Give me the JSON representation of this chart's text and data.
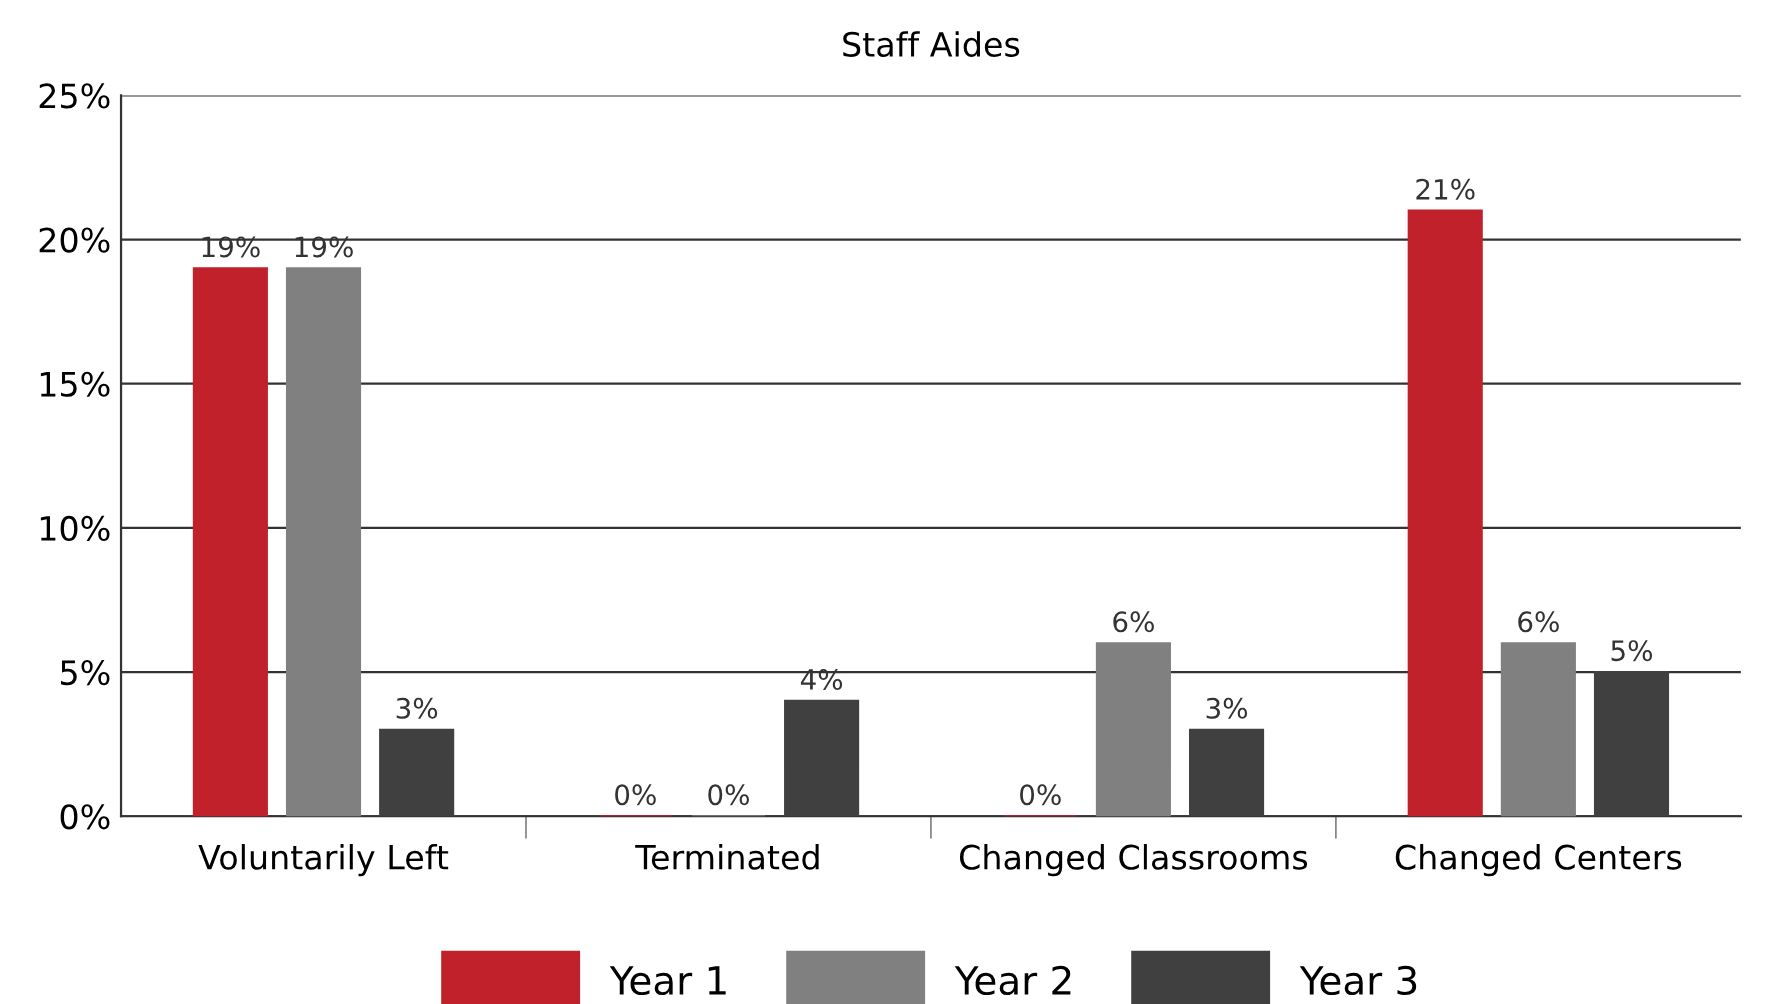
{
  "chart_data": {
    "type": "bar",
    "title": "Staff Aides",
    "categories": [
      "Voluntarily Left",
      "Terminated",
      "Changed Classrooms",
      "Changed Centers"
    ],
    "series": [
      {
        "name": "Year 1",
        "color": "#c0212b",
        "values": [
          19,
          0,
          0,
          21
        ],
        "value_labels": [
          "19%",
          "0%",
          "0%",
          "21%"
        ]
      },
      {
        "name": "Year 2",
        "color": "#808080",
        "values": [
          19,
          0,
          6,
          6
        ],
        "value_labels": [
          "19%",
          "0%",
          "6%",
          "6%"
        ]
      },
      {
        "name": "Year 3",
        "color": "#404040",
        "values": [
          3,
          4,
          3,
          5
        ],
        "value_labels": [
          "3%",
          "4%",
          "3%",
          "5%"
        ]
      }
    ],
    "ylim": [
      0,
      25
    ],
    "yticks": [
      {
        "value": 0,
        "label": "0%"
      },
      {
        "value": 5,
        "label": "5%"
      },
      {
        "value": 10,
        "label": "10%"
      },
      {
        "value": 15,
        "label": "15%"
      },
      {
        "value": 20,
        "label": "20%"
      },
      {
        "value": 25,
        "label": "25%"
      }
    ],
    "grid": "y",
    "legend": "bottom"
  }
}
